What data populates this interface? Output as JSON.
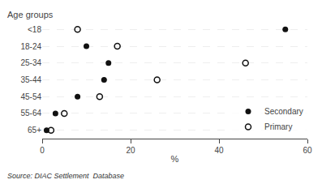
{
  "chart_data": {
    "type": "dot",
    "orientation": "horizontal",
    "categories": [
      "<18",
      "18-24",
      "25-34",
      "35-44",
      "45-54",
      "55-64",
      "65+"
    ],
    "series": [
      {
        "name": "Secondary",
        "color": "#111111",
        "marker": "filled",
        "values": [
          55,
          10,
          15,
          14,
          8,
          3,
          1
        ]
      },
      {
        "name": "Primary",
        "color": "#111111",
        "marker": "open",
        "values": [
          8,
          17,
          46,
          26,
          13,
          5,
          2
        ]
      }
    ],
    "xlabel": "%",
    "ylabel": "Age groups",
    "xlim": [
      0,
      60
    ],
    "xticks": [
      0,
      20,
      40,
      60
    ],
    "grid": "y",
    "legend": "lower right",
    "annotations": [
      "Source: DIAC Settlement  Database"
    ]
  }
}
